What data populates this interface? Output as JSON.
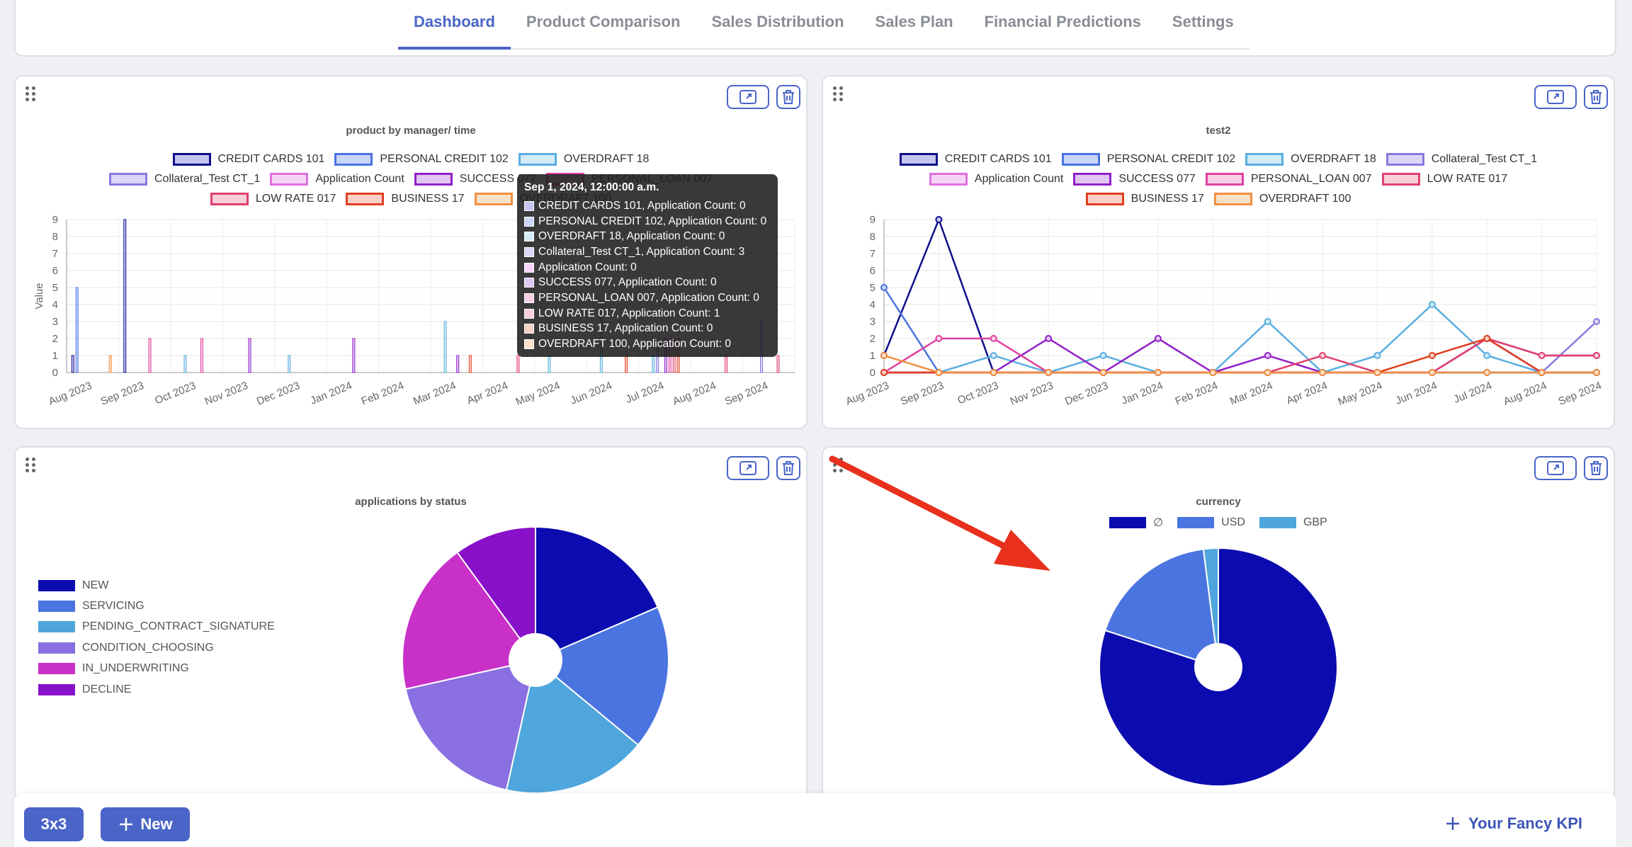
{
  "tabs": [
    {
      "label": "Dashboard",
      "active": true
    },
    {
      "label": "Product Comparison",
      "active": false
    },
    {
      "label": "Sales Distribution",
      "active": false
    },
    {
      "label": "Sales Plan",
      "active": false
    },
    {
      "label": "Financial Predictions",
      "active": false
    },
    {
      "label": "Settings",
      "active": false
    }
  ],
  "icons": {
    "drag": "drag-handle-icon",
    "expand": "expand-icon",
    "delete": "trash-icon",
    "plus": "plus-icon",
    "arrow": "red-arrow-annotation"
  },
  "colors": {
    "accent": "#4a64c8",
    "arrow": "#e8301c"
  },
  "series_legend": [
    {
      "name": "CREDIT CARDS 101",
      "stroke": "#0f0f8a",
      "fill": "#c4c6ef"
    },
    {
      "name": "PERSONAL CREDIT 102",
      "stroke": "#4a74e0",
      "fill": "#c9d6f7"
    },
    {
      "name": "OVERDRAFT 18",
      "stroke": "#5aaee0",
      "fill": "#d3eaf7"
    },
    {
      "name": "Collateral_Test CT_1",
      "stroke": "#8a78e0",
      "fill": "#dcd6f7"
    },
    {
      "name": "Application Count",
      "stroke": "#e070e0",
      "fill": "#f7d4f7"
    },
    {
      "name": "SUCCESS 077",
      "stroke": "#9020c8",
      "fill": "#e2c6f2"
    },
    {
      "name": "PERSONAL_LOAN 007",
      "stroke": "#e040a0",
      "fill": "#f7d0e6"
    },
    {
      "name": "LOW RATE 017",
      "stroke": "#e04070",
      "fill": "#f7d0da"
    },
    {
      "name": "BUSINESS 17",
      "stroke": "#e04020",
      "fill": "#f7d0c6"
    },
    {
      "name": "OVERDRAFT 100",
      "stroke": "#f09040",
      "fill": "#fbe0c8"
    }
  ],
  "panels": {
    "bar_title": "product by manager/ time",
    "line_title": "test2",
    "pie_title": "applications by status",
    "currency_title": "currency"
  },
  "tooltip": {
    "title": "Sep 1, 2024, 12:00:00 a.m.",
    "rows": [
      "CREDIT CARDS 101, Application Count: 0",
      "PERSONAL CREDIT 102, Application Count: 0",
      "OVERDRAFT 18, Application Count: 0",
      "Collateral_Test CT_1, Application Count: 3",
      "Application Count: 0",
      "SUCCESS 077, Application Count: 0",
      "PERSONAL_LOAN 007, Application Count: 0",
      "LOW RATE 017, Application Count: 1",
      "BUSINESS 17, Application Count: 0",
      "OVERDRAFT 100, Application Count: 0"
    ]
  },
  "bottom": {
    "layout_btn": "3x3",
    "new_btn": "New",
    "kpi_btn": "Your Fancy KPI"
  },
  "chart_data": [
    {
      "type": "bar",
      "title": "product by manager/ time",
      "ylabel": "Value",
      "ylim": [
        0,
        9
      ],
      "categories": [
        "Aug 2023",
        "Sep 2023",
        "Oct 2023",
        "Nov 2023",
        "Dec 2023",
        "Jan 2024",
        "Feb 2024",
        "Mar 2024",
        "Apr 2024",
        "May 2024",
        "Jun 2024",
        "Jul 2024",
        "Aug 2024",
        "Sep 2024"
      ],
      "series": [
        {
          "name": "CREDIT CARDS 101",
          "values": [
            1,
            9,
            0,
            0,
            0,
            0,
            0,
            0,
            0,
            0,
            0,
            0,
            0,
            0
          ]
        },
        {
          "name": "PERSONAL CREDIT 102",
          "values": [
            5,
            0,
            0,
            0,
            0,
            0,
            0,
            0,
            0,
            0,
            0,
            0,
            0,
            0
          ]
        },
        {
          "name": "OVERDRAFT 18",
          "values": [
            0,
            0,
            1,
            0,
            1,
            0,
            0,
            3,
            0,
            1,
            4,
            1,
            0,
            0
          ]
        },
        {
          "name": "Collateral_Test CT_1",
          "values": [
            0,
            0,
            0,
            0,
            0,
            0,
            0,
            0,
            0,
            0,
            0,
            2,
            0,
            3
          ]
        },
        {
          "name": "Application Count",
          "values": [
            0,
            0,
            0,
            0,
            0,
            0,
            0,
            0,
            0,
            0,
            0,
            0,
            0,
            0
          ]
        },
        {
          "name": "SUCCESS 077",
          "values": [
            0,
            0,
            0,
            2,
            0,
            2,
            0,
            1,
            0,
            0,
            0,
            2,
            0,
            0
          ]
        },
        {
          "name": "PERSONAL_LOAN 007",
          "values": [
            0,
            2,
            2,
            0,
            0,
            0,
            0,
            0,
            0,
            0,
            0,
            2,
            0,
            0
          ]
        },
        {
          "name": "LOW RATE 017",
          "values": [
            0,
            0,
            0,
            0,
            0,
            0,
            0,
            0,
            1,
            0,
            0,
            2,
            1,
            1
          ]
        },
        {
          "name": "BUSINESS 17",
          "values": [
            0,
            0,
            0,
            0,
            0,
            0,
            0,
            1,
            0,
            0,
            1,
            2,
            0,
            0
          ]
        },
        {
          "name": "OVERDRAFT 100",
          "values": [
            1,
            0,
            0,
            0,
            0,
            0,
            0,
            0,
            0,
            0,
            0,
            0,
            0,
            0
          ]
        }
      ]
    },
    {
      "type": "line",
      "title": "test2",
      "ylim": [
        0,
        9
      ],
      "categories": [
        "Aug 2023",
        "Sep 2023",
        "Oct 2023",
        "Nov 2023",
        "Dec 2023",
        "Jan 2024",
        "Feb 2024",
        "Mar 2024",
        "Apr 2024",
        "May 2024",
        "Jun 2024",
        "Jul 2024",
        "Aug 2024",
        "Sep 2024"
      ],
      "series": [
        {
          "name": "CREDIT CARDS 101",
          "values": [
            1,
            9,
            0,
            0,
            0,
            0,
            0,
            0,
            0,
            0,
            0,
            0,
            0,
            0
          ]
        },
        {
          "name": "PERSONAL CREDIT 102",
          "values": [
            5,
            0,
            0,
            0,
            0,
            0,
            0,
            0,
            0,
            0,
            0,
            0,
            0,
            0
          ]
        },
        {
          "name": "OVERDRAFT 18",
          "values": [
            0,
            0,
            1,
            0,
            1,
            0,
            0,
            3,
            0,
            1,
            4,
            1,
            0,
            0
          ]
        },
        {
          "name": "Collateral_Test CT_1",
          "values": [
            0,
            0,
            0,
            0,
            0,
            0,
            0,
            0,
            0,
            0,
            0,
            2,
            0,
            3
          ]
        },
        {
          "name": "SUCCESS 077",
          "values": [
            0,
            0,
            0,
            2,
            0,
            2,
            0,
            1,
            0,
            0,
            0,
            2,
            0,
            0
          ]
        },
        {
          "name": "PERSONAL_LOAN 007",
          "values": [
            0,
            2,
            2,
            0,
            0,
            0,
            0,
            0,
            0,
            0,
            0,
            2,
            1,
            1
          ]
        },
        {
          "name": "LOW RATE 017",
          "values": [
            0,
            0,
            0,
            0,
            0,
            0,
            0,
            0,
            1,
            0,
            0,
            2,
            1,
            1
          ]
        },
        {
          "name": "BUSINESS 17",
          "values": [
            0,
            0,
            0,
            0,
            0,
            0,
            0,
            0,
            0,
            0,
            1,
            2,
            0,
            0
          ]
        },
        {
          "name": "OVERDRAFT 100",
          "values": [
            1,
            0,
            0,
            0,
            0,
            0,
            0,
            0,
            0,
            0,
            0,
            0,
            0,
            0
          ]
        }
      ]
    },
    {
      "type": "pie",
      "title": "applications by status",
      "legend_placement": "left",
      "labels": [
        "NEW",
        "SERVICING",
        "PENDING_CONTRACT_SIGNATURE",
        "CONDITION_CHOOSING",
        "IN_UNDERWRITING",
        "DECLINE"
      ],
      "values": [
        18.5,
        17.5,
        17.5,
        18,
        18.5,
        10
      ],
      "colors": [
        "#0b0bb0",
        "#4a74e0",
        "#4ea6dc",
        "#8a70e0",
        "#c830c8",
        "#8810c8"
      ]
    },
    {
      "type": "pie",
      "title": "currency",
      "legend_placement": "top",
      "labels": [
        "∅",
        "USD",
        "GBP"
      ],
      "values": [
        80,
        18,
        2
      ],
      "colors": [
        "#0b0bb0",
        "#4a74e0",
        "#4ea6dc"
      ]
    }
  ]
}
